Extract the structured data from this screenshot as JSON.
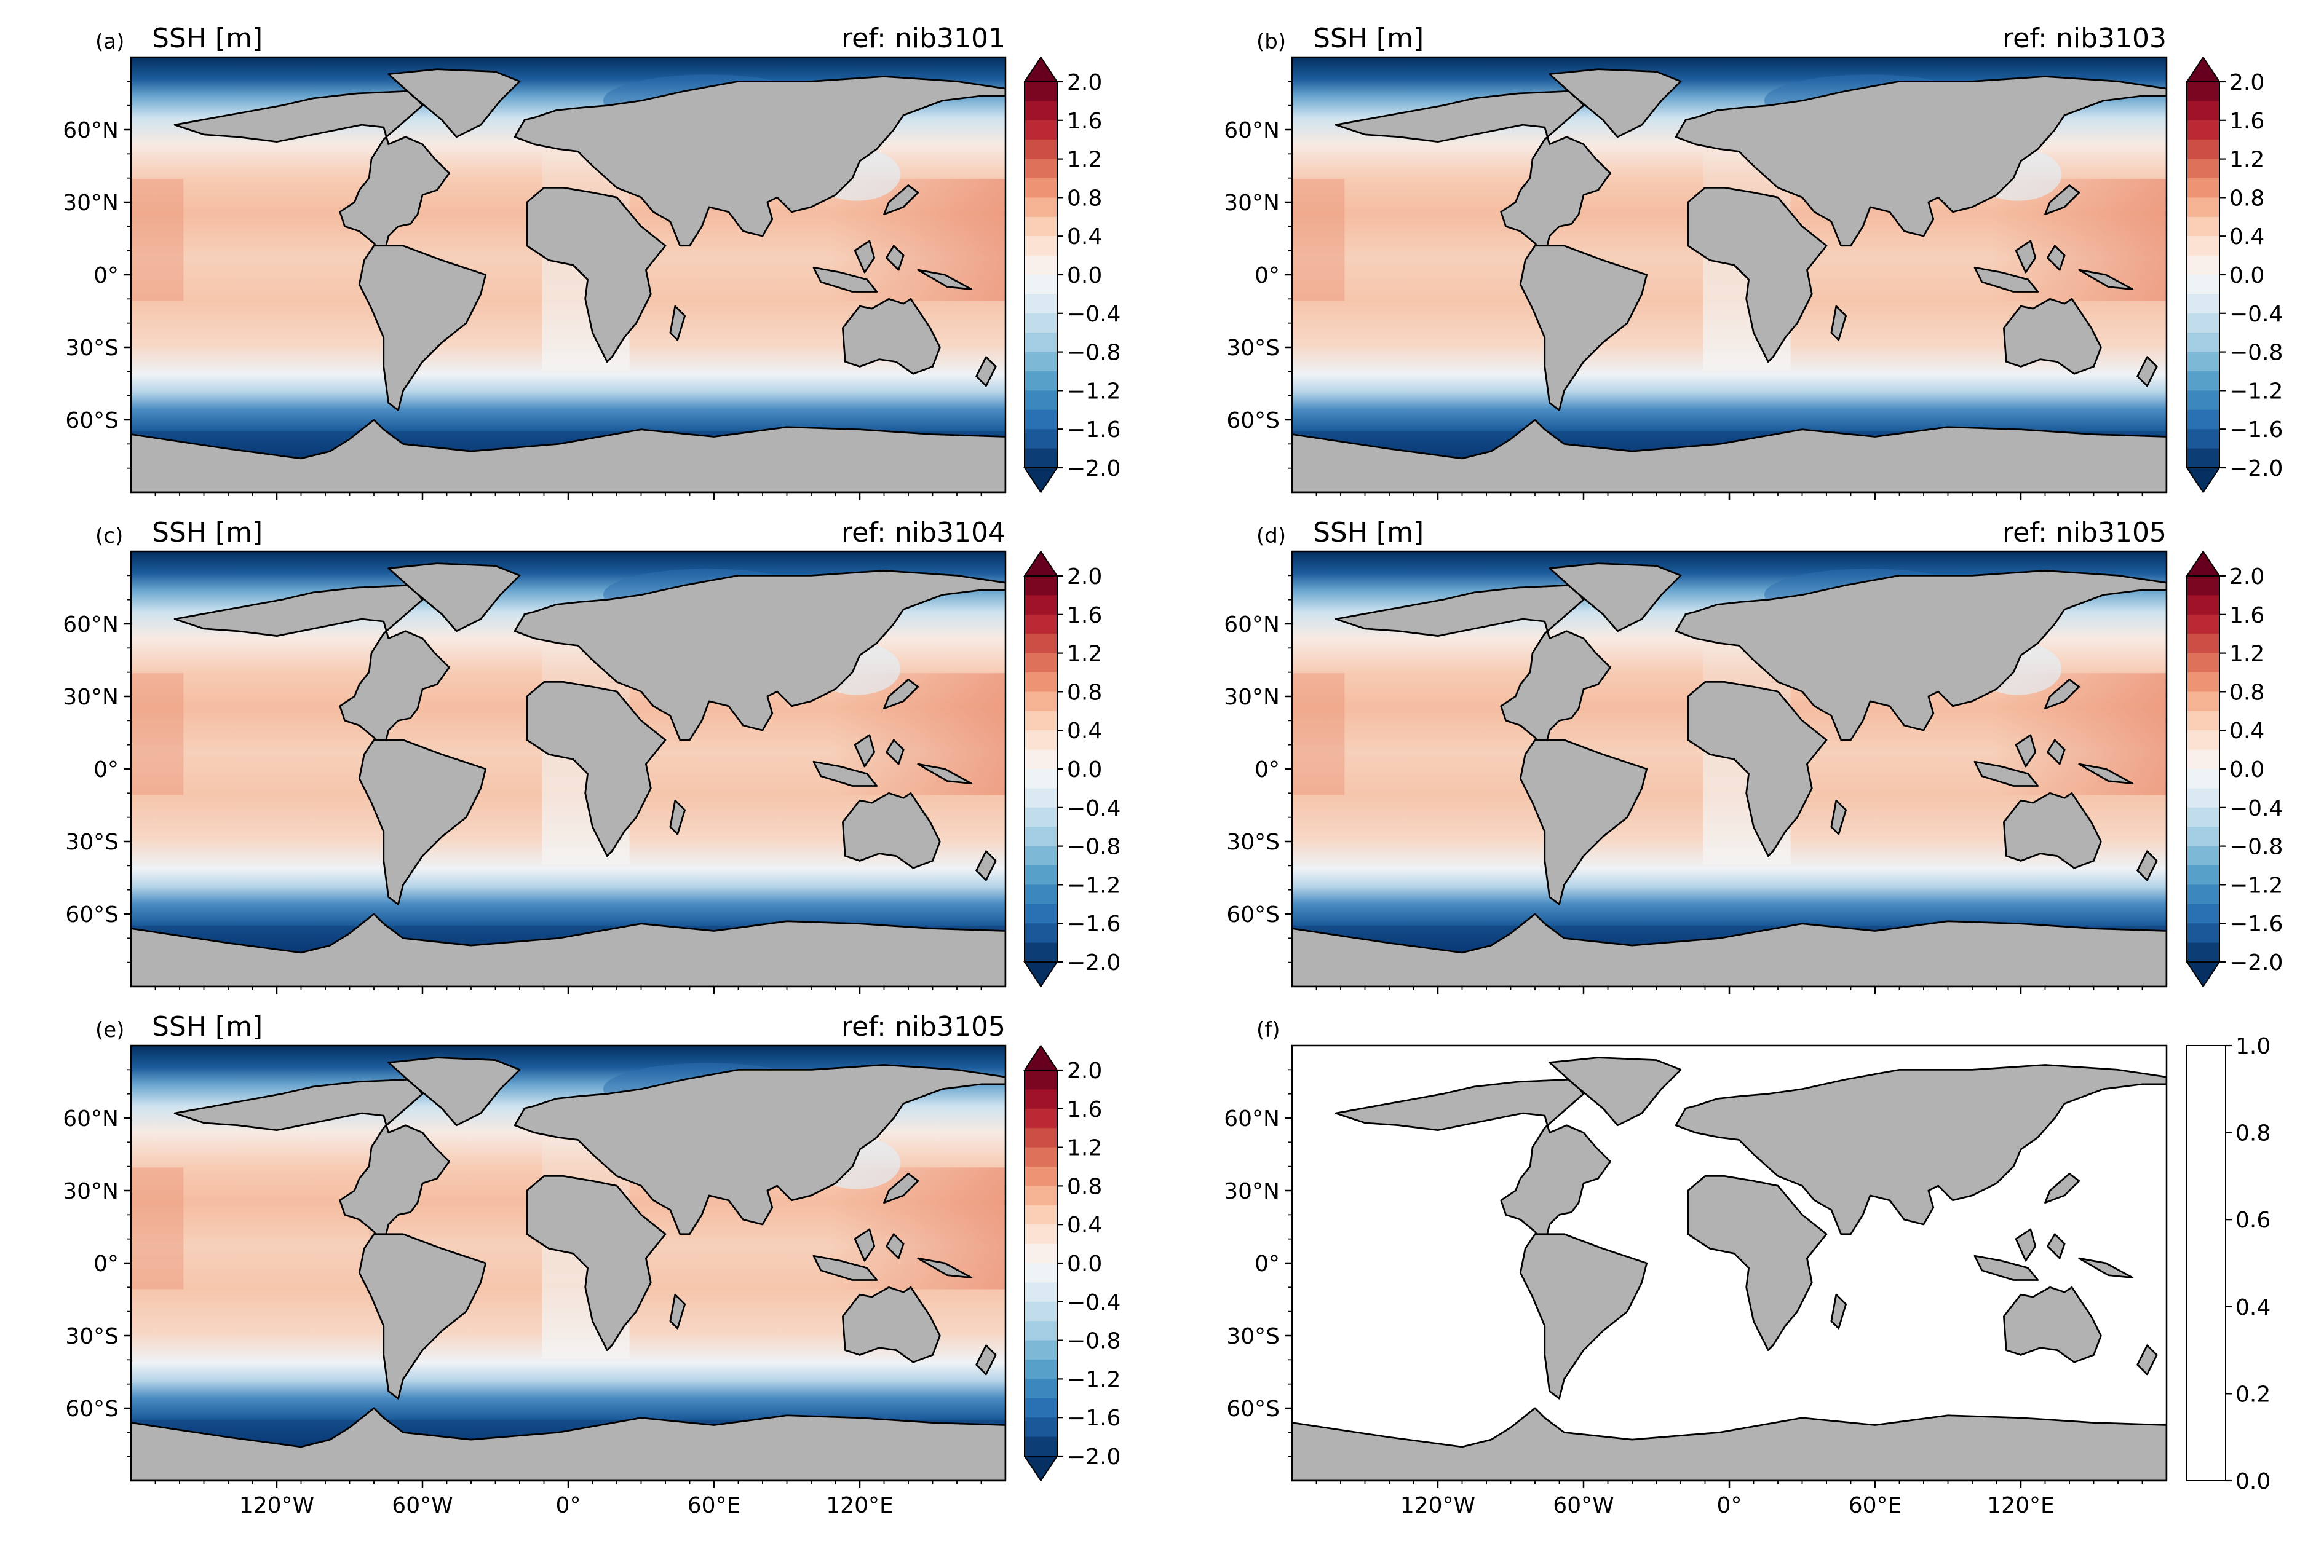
{
  "panels": [
    {
      "letter": "(a)",
      "title": "SSH [m]",
      "ref": "ref: nib3101",
      "type": "ssh"
    },
    {
      "letter": "(b)",
      "title": "SSH [m]",
      "ref": "ref: nib3103",
      "type": "ssh"
    },
    {
      "letter": "(c)",
      "title": "SSH [m]",
      "ref": "ref: nib3104",
      "type": "ssh"
    },
    {
      "letter": "(d)",
      "title": "SSH [m]",
      "ref": "ref: nib3105",
      "type": "ssh"
    },
    {
      "letter": "(e)",
      "title": "SSH [m]",
      "ref": "ref: nib3105",
      "type": "ssh"
    },
    {
      "letter": "(f)",
      "title": "",
      "ref": "",
      "type": "empty"
    }
  ],
  "map": {
    "lon_range": [
      -180,
      180
    ],
    "lat_range": [
      -90,
      90
    ],
    "lat_ticks": [
      {
        "lat": 60,
        "label": "60°N"
      },
      {
        "lat": 30,
        "label": "30°N"
      },
      {
        "lat": 0,
        "label": "0°"
      },
      {
        "lat": -30,
        "label": "30°S"
      },
      {
        "lat": -60,
        "label": "60°S"
      }
    ],
    "lon_ticks": [
      {
        "lon": -120,
        "label": "120°W"
      },
      {
        "lon": -60,
        "label": "60°W"
      },
      {
        "lon": 0,
        "label": "0°"
      },
      {
        "lon": 60,
        "label": "60°E"
      },
      {
        "lon": 120,
        "label": "120°E"
      }
    ],
    "land_color": "#b2b2b2",
    "coast_color": "#000000"
  },
  "colorbar": {
    "ssh": {
      "min": -2.0,
      "max": 2.0,
      "step": 0.2,
      "extend": "both",
      "tick_labels": [
        "2.0",
        "1.6",
        "1.2",
        "0.8",
        "0.4",
        "0.0",
        "−0.4",
        "−0.8",
        "−1.2",
        "−1.6",
        "−2.0"
      ]
    },
    "empty": {
      "min": 0.0,
      "max": 1.0,
      "tick_labels": [
        "1.0",
        "0.8",
        "0.6",
        "0.4",
        "0.2",
        "0.0"
      ]
    }
  }
}
